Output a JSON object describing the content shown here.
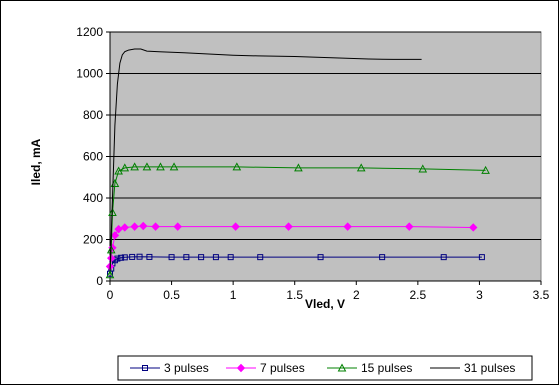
{
  "chart_data": {
    "type": "line",
    "title": "",
    "xlabel": "Vled, V",
    "ylabel": "Iled, mA",
    "xlim": [
      0,
      3.5
    ],
    "ylim": [
      0,
      1200
    ],
    "x_ticks": [
      "0",
      "0.5",
      "1",
      "1.5",
      "2",
      "2.5",
      "3",
      "3.5"
    ],
    "y_ticks": [
      "0",
      "200",
      "400",
      "600",
      "800",
      "1000",
      "1200"
    ],
    "grid": "horizontal",
    "legend_position": "bottom",
    "plot_background": "#c0c0c0",
    "series": [
      {
        "name": "3 pulses",
        "color": "#000080",
        "marker": "square",
        "x": [
          0.0,
          0.01,
          0.02,
          0.04,
          0.06,
          0.09,
          0.12,
          0.18,
          0.24,
          0.32,
          0.5,
          0.62,
          0.74,
          0.86,
          0.98,
          1.22,
          1.71,
          2.21,
          2.71,
          3.02
        ],
        "y": [
          35,
          60,
          85,
          100,
          108,
          112,
          114,
          116,
          117,
          116,
          115,
          115,
          115,
          115,
          115,
          115,
          115,
          115,
          115,
          115
        ]
      },
      {
        "name": "7 pulses",
        "color": "#ff00ff",
        "marker": "diamond",
        "x": [
          0.0,
          0.01,
          0.02,
          0.04,
          0.07,
          0.12,
          0.2,
          0.27,
          0.37,
          0.55,
          1.02,
          1.45,
          1.93,
          2.43,
          2.95
        ],
        "y": [
          70,
          110,
          160,
          220,
          250,
          258,
          262,
          265,
          262,
          262,
          262,
          262,
          262,
          262,
          258
        ]
      },
      {
        "name": "15 pulses",
        "color": "#008000",
        "marker": "triangle",
        "x": [
          0.0,
          0.01,
          0.02,
          0.04,
          0.07,
          0.12,
          0.2,
          0.3,
          0.41,
          0.52,
          1.03,
          1.53,
          2.04,
          2.54,
          3.05
        ],
        "y": [
          30,
          150,
          330,
          470,
          530,
          545,
          550,
          550,
          550,
          550,
          550,
          545,
          545,
          540,
          533
        ]
      },
      {
        "name": "31 pulses",
        "color": "#000000",
        "marker": "none",
        "x": [
          0.0,
          0.02,
          0.04,
          0.06,
          0.08,
          0.1,
          0.12,
          0.15,
          0.2,
          0.25,
          0.3,
          0.4,
          0.6,
          0.8,
          1.0,
          1.2,
          1.5,
          1.8,
          2.1,
          2.3,
          2.53
        ],
        "y": [
          50,
          400,
          750,
          950,
          1050,
          1090,
          1105,
          1113,
          1118,
          1118,
          1108,
          1105,
          1100,
          1094,
          1088,
          1085,
          1082,
          1076,
          1070,
          1068,
          1068
        ]
      }
    ]
  }
}
